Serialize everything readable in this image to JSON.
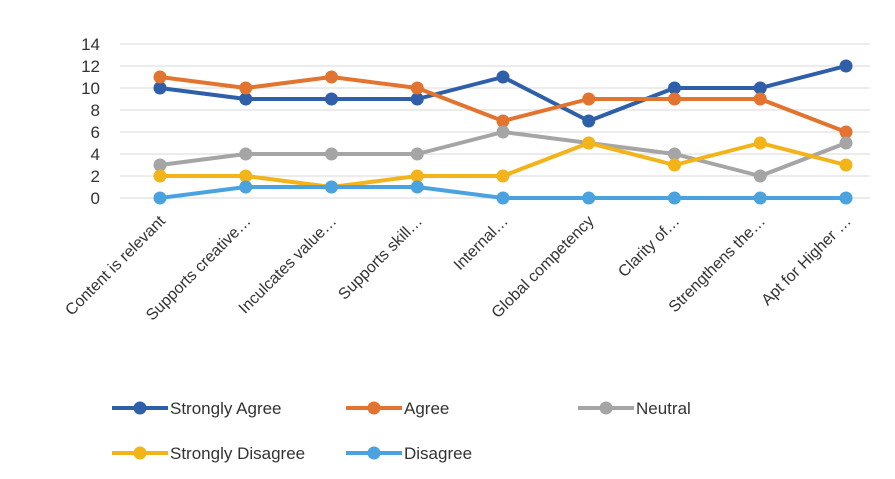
{
  "chart_data": {
    "type": "line",
    "title": "",
    "xlabel": "",
    "ylabel": "",
    "categories": [
      "Content is relevant",
      "Supports creative…",
      "Inculcates value…",
      "Supports skill…",
      "Internal…",
      "Global competency",
      "Clarity of…",
      "Strengthens the…",
      "Apt for Higher …"
    ],
    "ylim": [
      0,
      14
    ],
    "yticks": [
      0,
      2,
      4,
      6,
      8,
      10,
      12,
      14
    ],
    "grid": true,
    "legend_position": "bottom",
    "series": [
      {
        "name": "Strongly Agree",
        "color": "#2e5fa8",
        "values": [
          10,
          9,
          9,
          9,
          11,
          7,
          10,
          10,
          12
        ]
      },
      {
        "name": "Agree",
        "color": "#e2742f",
        "values": [
          11,
          10,
          11,
          10,
          7,
          9,
          9,
          9,
          6
        ]
      },
      {
        "name": "Neutral",
        "color": "#a5a5a5",
        "values": [
          3,
          4,
          4,
          4,
          6,
          5,
          4,
          2,
          5
        ]
      },
      {
        "name": "Strongly Disagree",
        "color": "#f2b418",
        "values": [
          2,
          2,
          1,
          2,
          2,
          5,
          3,
          5,
          3
        ]
      },
      {
        "name": "Disagree",
        "color": "#4aa3df",
        "values": [
          0,
          1,
          1,
          1,
          0,
          0,
          0,
          0,
          0
        ]
      }
    ]
  }
}
